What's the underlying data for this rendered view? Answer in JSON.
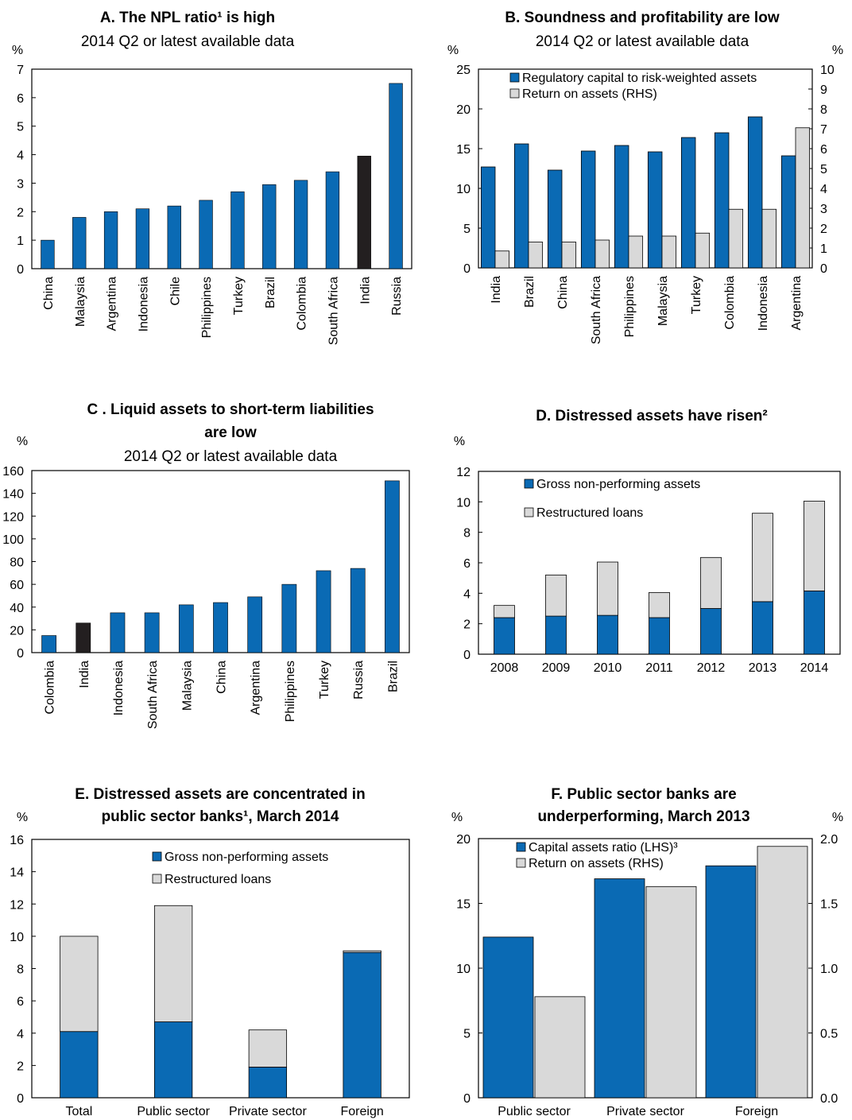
{
  "colors": {
    "blue": "#0a6ab4",
    "grey": "#d9d9d9",
    "black": "#231f20"
  },
  "chart_data": [
    {
      "id": "A",
      "type": "bar",
      "title": "A. The NPL ratio¹ is high",
      "subtitle": "2014 Q2 or latest available data",
      "ylabel": "%",
      "ylim": [
        0,
        7
      ],
      "yticks": [
        0,
        1,
        2,
        3,
        4,
        5,
        6,
        7
      ],
      "categories": [
        "China",
        "Malaysia",
        "Argentina",
        "Indonesia",
        "Chile",
        "Philippines",
        "Turkey",
        "Brazil",
        "Colombia",
        "South Africa",
        "India",
        "Russia"
      ],
      "series": [
        {
          "values": [
            1.0,
            1.8,
            2.0,
            2.1,
            2.2,
            2.4,
            2.7,
            2.95,
            3.1,
            3.4,
            3.95,
            6.5
          ]
        }
      ],
      "highlight": "India"
    },
    {
      "id": "B",
      "type": "bar",
      "title": "B. Soundness and profitability are low",
      "subtitle": "2014 Q2 or latest available data",
      "ylabel": "%",
      "ylabel_right": "%",
      "ylim": [
        0,
        25
      ],
      "ylim_right": [
        0,
        10
      ],
      "yticks": [
        0,
        5,
        10,
        15,
        20,
        25
      ],
      "yticks_right": [
        0,
        1,
        2,
        3,
        4,
        5,
        6,
        7,
        8,
        9,
        10
      ],
      "categories": [
        "India",
        "Brazil",
        "China",
        "South Africa",
        "Philippines",
        "Malaysia",
        "Turkey",
        "Colombia",
        "Indonesia",
        "Argentina"
      ],
      "series": [
        {
          "name": "Regulatory capital to risk-weighted assets",
          "axis": "left",
          "values": [
            12.7,
            15.6,
            12.3,
            14.7,
            15.4,
            14.6,
            16.4,
            17.0,
            19.0,
            14.1
          ]
        },
        {
          "name": "Return on assets (RHS)",
          "axis": "right",
          "values": [
            0.85,
            1.3,
            1.3,
            1.4,
            1.6,
            1.6,
            1.75,
            2.95,
            2.95,
            7.05
          ]
        }
      ],
      "legend": "top-left"
    },
    {
      "id": "C",
      "type": "bar",
      "title": "C . Liquid assets to short-term liabilities are low",
      "title_lines": [
        "C . Liquid assets to short-term liabilities",
        "are low"
      ],
      "subtitle": "2014 Q2 or latest available data",
      "ylabel": "%",
      "ylim": [
        0,
        160
      ],
      "yticks": [
        0,
        20,
        40,
        60,
        80,
        100,
        120,
        140,
        160
      ],
      "categories": [
        "Colombia",
        "India",
        "Indonesia",
        "South Africa",
        "Malaysia",
        "China",
        "Argentina",
        "Philippines",
        "Turkey",
        "Russia",
        "Brazil"
      ],
      "series": [
        {
          "values": [
            15,
            26,
            35,
            35,
            42,
            44,
            49,
            60,
            72,
            74,
            151
          ]
        }
      ],
      "highlight": "India"
    },
    {
      "id": "D",
      "type": "bar",
      "stacked": true,
      "title": "D. Distressed assets have risen²",
      "ylabel": "%",
      "ylim": [
        0,
        12
      ],
      "yticks": [
        0,
        2,
        4,
        6,
        8,
        10,
        12
      ],
      "categories": [
        "2008",
        "2009",
        "2010",
        "2011",
        "2012",
        "2013",
        "2014"
      ],
      "series": [
        {
          "name": "Gross non-performing assets",
          "values": [
            2.4,
            2.5,
            2.55,
            2.4,
            3.0,
            3.45,
            4.15
          ]
        },
        {
          "name": "Restructured loans",
          "values": [
            0.8,
            2.7,
            3.5,
            1.65,
            3.35,
            5.8,
            5.9
          ]
        }
      ],
      "legend": "top-left"
    },
    {
      "id": "E",
      "type": "bar",
      "stacked": true,
      "title": "E. Distressed assets are concentrated in public sector banks¹, March 2014",
      "title_lines": [
        "E. Distressed assets are concentrated in",
        "public sector banks¹, March 2014"
      ],
      "ylabel": "%",
      "ylim": [
        0,
        16
      ],
      "yticks": [
        0,
        2,
        4,
        6,
        8,
        10,
        12,
        14,
        16
      ],
      "categories": [
        "Total",
        "Public sector",
        "Private sector",
        "Foreign"
      ],
      "series": [
        {
          "name": "Gross non-performing assets",
          "values": [
            4.1,
            4.7,
            1.9,
            9.0
          ]
        },
        {
          "name": "Restructured loans",
          "values": [
            5.9,
            7.2,
            2.3,
            0.1
          ]
        }
      ],
      "legend": "top-right"
    },
    {
      "id": "F",
      "type": "bar",
      "title": "F. Public sector banks are underperforming, March 2013",
      "title_lines": [
        "F. Public sector banks are",
        "underperforming, March 2013"
      ],
      "ylabel": "%",
      "ylabel_right": "%",
      "ylim": [
        0,
        20
      ],
      "ylim_right": [
        0,
        2.0
      ],
      "yticks": [
        0,
        5,
        10,
        15,
        20
      ],
      "yticks_right": [
        "0.0",
        "0.5",
        "1.0",
        "1.5",
        "2.0"
      ],
      "categories": [
        "Public sector",
        "Private sector",
        "Foreign"
      ],
      "series": [
        {
          "name": "Capital assets ratio (LHS)³",
          "axis": "left",
          "values": [
            12.4,
            16.9,
            17.9
          ]
        },
        {
          "name": "Return on assets (RHS)",
          "axis": "right",
          "values": [
            0.78,
            1.63,
            1.94
          ]
        }
      ],
      "legend": "top-left"
    }
  ]
}
